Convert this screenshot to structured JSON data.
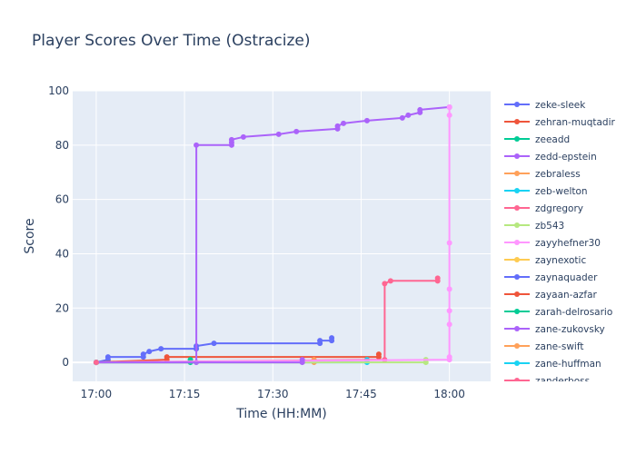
{
  "chart_data": {
    "type": "line",
    "title": "Player Scores Over Time (Ostracize)",
    "xlabel": "Time (HH:MM)",
    "ylabel": "Score",
    "xlim": [
      "16:56",
      "18:07"
    ],
    "ylim": [
      -7,
      100
    ],
    "x_ticks": [
      "17:00",
      "17:15",
      "17:30",
      "17:45",
      "18:00"
    ],
    "y_ticks": [
      0,
      20,
      40,
      60,
      80,
      100
    ],
    "grid": true,
    "legend_position": "right",
    "series": [
      {
        "name": "zeke-sleek",
        "color": "#636efa",
        "points": [
          [
            "17:00",
            0
          ],
          [
            "17:02",
            1
          ],
          [
            "17:02",
            2
          ],
          [
            "17:08",
            2
          ],
          [
            "17:08",
            3
          ],
          [
            "17:09",
            4
          ],
          [
            "17:11",
            5
          ],
          [
            "17:17",
            5
          ],
          [
            "17:17",
            6
          ],
          [
            "17:20",
            7
          ],
          [
            "17:38",
            7
          ],
          [
            "17:38",
            8
          ],
          [
            "17:40",
            8
          ],
          [
            "17:40",
            9
          ]
        ]
      },
      {
        "name": "zehran-muqtadir",
        "color": "#ef553b",
        "points": [
          [
            "17:00",
            0
          ],
          [
            "17:12",
            1
          ],
          [
            "17:12",
            2
          ],
          [
            "17:48",
            2
          ],
          [
            "17:48",
            3
          ]
        ]
      },
      {
        "name": "zeeadd",
        "color": "#00cc96",
        "points": [
          [
            "17:00",
            0
          ],
          [
            "17:16",
            0
          ],
          [
            "17:16",
            1
          ]
        ]
      },
      {
        "name": "zedd-epstein",
        "color": "#ab63fa",
        "points": [
          [
            "17:00",
            0
          ],
          [
            "17:17",
            0
          ],
          [
            "17:17",
            80
          ],
          [
            "17:23",
            80
          ],
          [
            "17:23",
            81
          ],
          [
            "17:23",
            82
          ],
          [
            "17:25",
            83
          ],
          [
            "17:31",
            84
          ],
          [
            "17:34",
            85
          ],
          [
            "17:41",
            86
          ],
          [
            "17:41",
            87
          ],
          [
            "17:42",
            88
          ],
          [
            "17:46",
            89
          ],
          [
            "17:52",
            90
          ],
          [
            "17:53",
            91
          ],
          [
            "17:55",
            92
          ],
          [
            "17:55",
            93
          ],
          [
            "18:00",
            94
          ]
        ]
      },
      {
        "name": "zebraless",
        "color": "#ffa15a",
        "points": [
          [
            "17:00",
            0
          ],
          [
            "17:37",
            0
          ],
          [
            "17:37",
            1
          ]
        ]
      },
      {
        "name": "zeb-welton",
        "color": "#19d3f3",
        "points": [
          [
            "17:00",
            0
          ],
          [
            "17:46",
            0
          ],
          [
            "17:46",
            1
          ]
        ]
      },
      {
        "name": "zdgregory",
        "color": "#ff6692",
        "points": [
          [
            "17:00",
            0
          ],
          [
            "17:49",
            1
          ],
          [
            "17:49",
            29
          ],
          [
            "17:50",
            30
          ],
          [
            "17:58",
            30
          ],
          [
            "17:58",
            31
          ]
        ]
      },
      {
        "name": "zb543",
        "color": "#b6e880",
        "points": [
          [
            "17:00",
            0
          ],
          [
            "17:56",
            0
          ],
          [
            "17:56",
            1
          ]
        ]
      },
      {
        "name": "zayyhefner30",
        "color": "#ff97ff",
        "points": [
          [
            "17:00",
            0
          ],
          [
            "18:00",
            1
          ],
          [
            "18:00",
            2
          ],
          [
            "18:00",
            14
          ],
          [
            "18:00",
            19
          ],
          [
            "18:00",
            27
          ],
          [
            "18:00",
            44
          ],
          [
            "18:00",
            91
          ],
          [
            "18:00",
            94
          ]
        ]
      },
      {
        "name": "zaynexotic",
        "color": "#fecb52",
        "points": [
          [
            "17:00",
            0
          ]
        ]
      },
      {
        "name": "zaynaquader",
        "color": "#636efa",
        "points": [
          [
            "17:00",
            0
          ]
        ]
      },
      {
        "name": "zayaan-azfar",
        "color": "#ef553b",
        "points": [
          [
            "17:00",
            0
          ]
        ]
      },
      {
        "name": "zarah-delrosario",
        "color": "#00cc96",
        "points": [
          [
            "17:00",
            0
          ]
        ]
      },
      {
        "name": "zane-zukovsky",
        "color": "#ab63fa",
        "points": [
          [
            "17:00",
            0
          ],
          [
            "17:35",
            0
          ],
          [
            "17:35",
            1
          ]
        ]
      },
      {
        "name": "zane-swift",
        "color": "#ffa15a",
        "points": [
          [
            "17:00",
            0
          ]
        ]
      },
      {
        "name": "zane-huffman",
        "color": "#19d3f3",
        "points": [
          [
            "17:00",
            0
          ]
        ]
      },
      {
        "name": "zanderboss",
        "color": "#ff6692",
        "points": [
          [
            "17:00",
            0
          ]
        ]
      }
    ]
  }
}
